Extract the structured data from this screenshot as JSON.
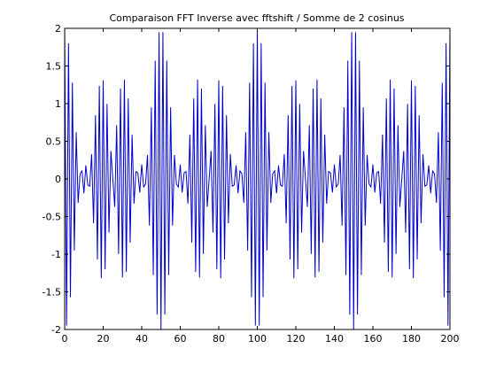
{
  "chart_data": {
    "type": "line",
    "title": "Comparaison FFT Inverse avec fftshift / Somme de 2 cosinus",
    "xlabel": "",
    "ylabel": "",
    "xlim": [
      0,
      200
    ],
    "ylim": [
      -2,
      2
    ],
    "xticks": [
      "0",
      "20",
      "40",
      "60",
      "80",
      "100",
      "120",
      "140",
      "160",
      "180",
      "200"
    ],
    "yticks": [
      "-2",
      "-1.5",
      "-1",
      "-0.5",
      "0",
      "0.5",
      "1",
      "1.5",
      "2"
    ],
    "grid": false,
    "legend": "none",
    "series": [
      {
        "x_start": 0,
        "x_end": 200,
        "x_step": 1,
        "formula": "y = 2*cos(2*pi*0.02*x)*cos(2*pi*0.47*x)",
        "samples": 201,
        "color": "#0000cc"
      }
    ]
  }
}
